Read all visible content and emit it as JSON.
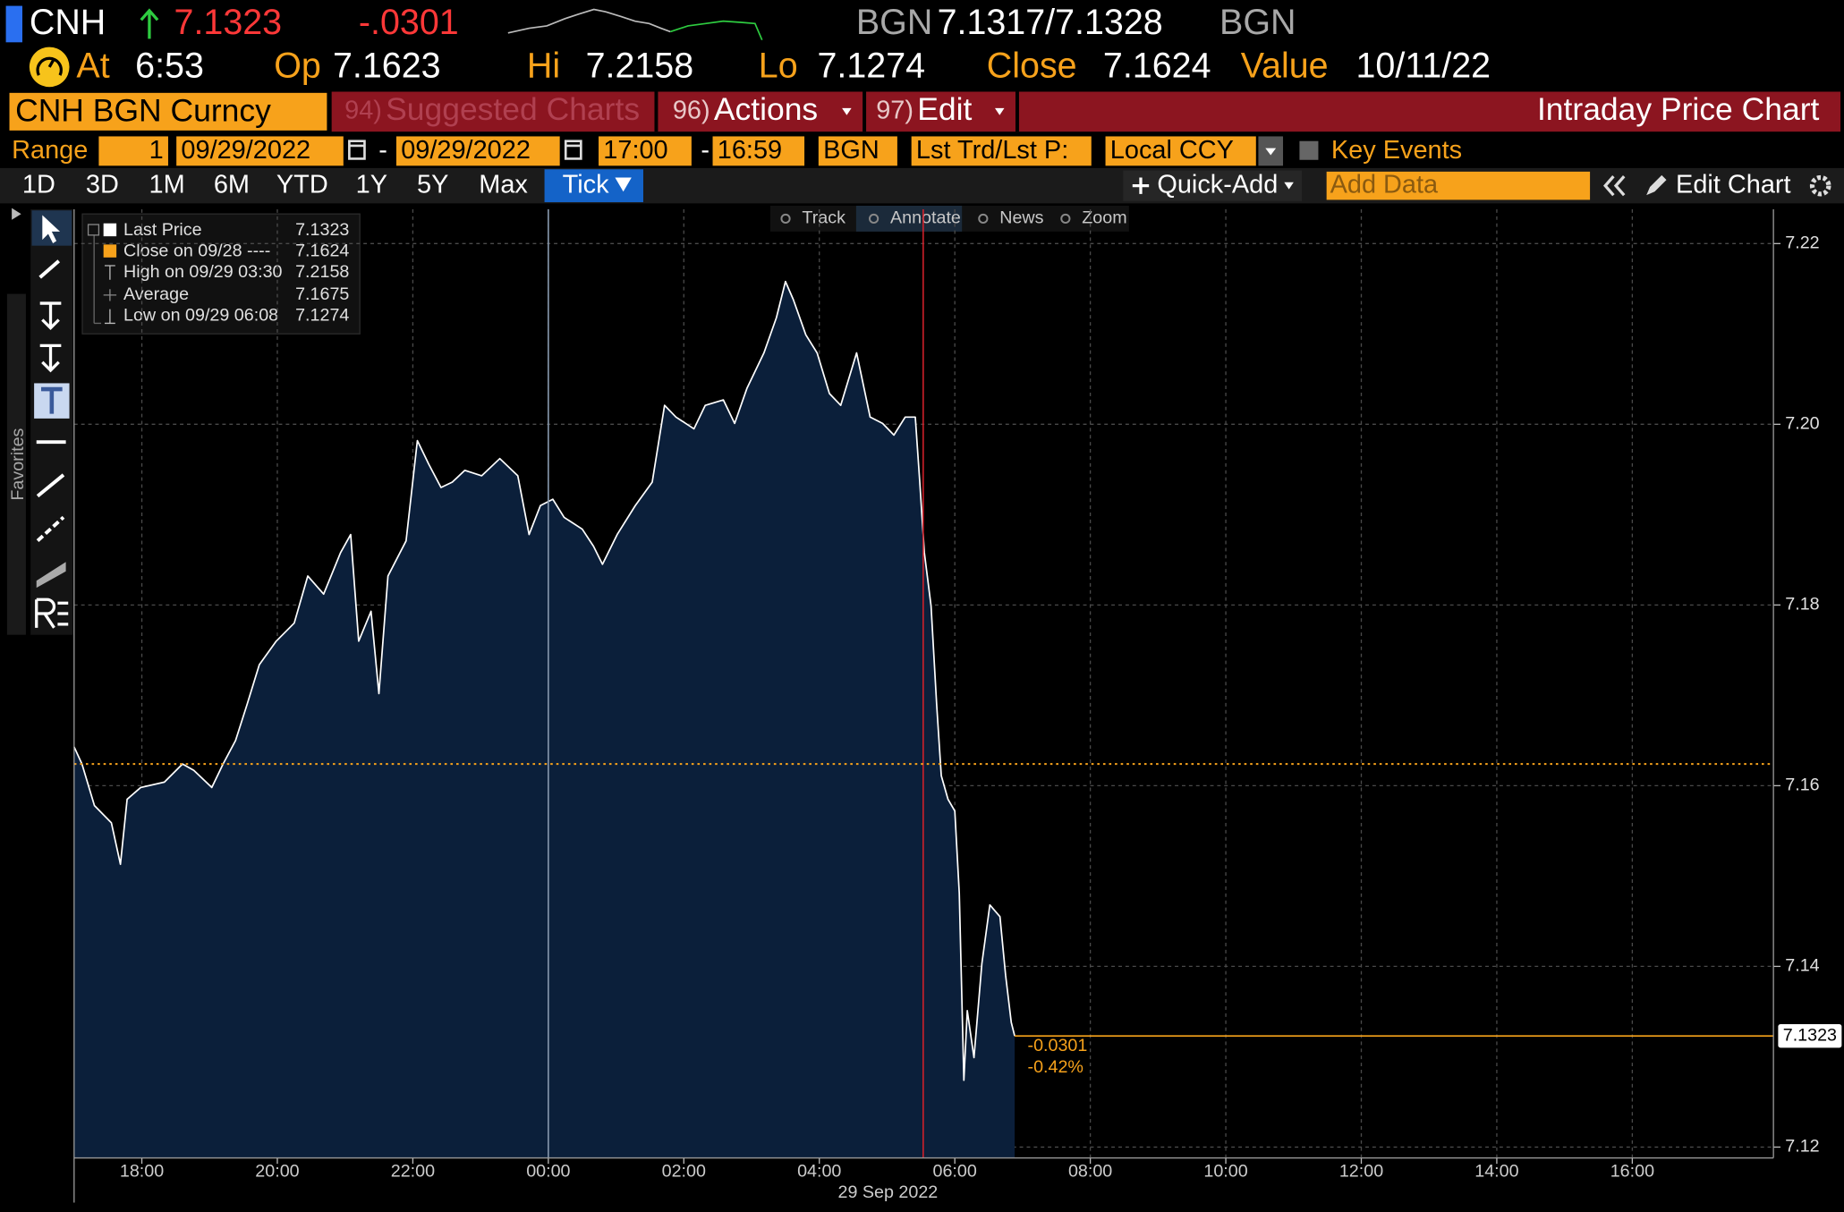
{
  "quote": {
    "ticker": "CNH",
    "last": "7.1323",
    "change": "-.0301",
    "source": "BGN",
    "bid_ask": "7.1317/7.1328",
    "source_right": "BGN"
  },
  "stats": [
    {
      "label": "At",
      "value": "6:53"
    },
    {
      "label": "Op",
      "value": "7.1623"
    },
    {
      "label": "Hi",
      "value": "7.2158"
    },
    {
      "label": "Lo",
      "value": "7.1274"
    },
    {
      "label": "Close",
      "value": "7.1624"
    },
    {
      "label": "Value",
      "value": "10/11/22"
    }
  ],
  "menu": {
    "security": "CNH BGN Curncy",
    "items": [
      {
        "num": "94)",
        "label": "Suggested Charts"
      },
      {
        "num": "96)",
        "label": "Actions"
      },
      {
        "num": "97)",
        "label": "Edit"
      }
    ],
    "title": "Intraday Price Chart"
  },
  "range": {
    "label": "Range",
    "count": "1",
    "start_date": "09/29/2022",
    "dash": "-",
    "end_date": "09/29/2022",
    "start_time": "17:00",
    "end_time": "16:59",
    "source": "BGN",
    "field": "Lst Trd/Lst P:",
    "currency": "Local CCY",
    "key_events": "Key Events"
  },
  "tabs": [
    "1D",
    "3D",
    "1M",
    "6M",
    "YTD",
    "1Y",
    "5Y",
    "Max",
    "Tick"
  ],
  "active_tab": "Tick",
  "toolbar_right": {
    "quick_add": "Quick-Add",
    "add_data": "Add Data",
    "edit_chart": "Edit Chart"
  },
  "chart_tools": [
    "Track",
    "Annotate",
    "News",
    "Zoom"
  ],
  "favorites": "Favorites",
  "legend": [
    {
      "label": "Last Price",
      "value": "7.1323"
    },
    {
      "label": "Close on 09/28 ----",
      "value": "7.1624"
    },
    {
      "label": "High on 09/29 03:30",
      "value": "7.2158"
    },
    {
      "label": "Average",
      "value": "7.1675"
    },
    {
      "label": "Low on 09/29 06:08",
      "value": "7.1274"
    }
  ],
  "chart_data": {
    "type": "area",
    "x": [
      "17:00",
      "17:07",
      "17:18",
      "17:33",
      "17:41",
      "17:47",
      "17:59",
      "18:20",
      "18:36",
      "18:46",
      "19:02",
      "19:12",
      "19:23",
      "19:33",
      "19:44",
      "19:59",
      "20:15",
      "20:27",
      "20:41",
      "20:56",
      "21:05",
      "21:12",
      "21:23",
      "21:30",
      "21:38",
      "21:54",
      "22:04",
      "22:14",
      "22:25",
      "22:35",
      "22:46",
      "23:01",
      "23:17",
      "23:33",
      "23:43",
      "23:53",
      "00:04",
      "00:14",
      "00:30",
      "00:40",
      "00:48",
      "01:01",
      "01:17",
      "01:32",
      "01:43",
      "01:53",
      "02:09",
      "02:19",
      "02:35",
      "02:45",
      "02:56",
      "03:11",
      "03:22",
      "03:30",
      "03:37",
      "03:48",
      "03:58",
      "04:09",
      "04:19",
      "04:33",
      "04:45",
      "04:56",
      "05:06",
      "05:16",
      "05:25",
      "05:29",
      "05:33",
      "05:39",
      "05:44",
      "05:48",
      "05:54",
      "06:00",
      "06:04",
      "06:08",
      "06:11",
      "06:17",
      "06:24",
      "06:31",
      "06:40",
      "06:45",
      "06:50",
      "06:53"
    ],
    "series": [
      {
        "name": "Last Price",
        "color": "#ffffff",
        "fill": "#0b1f3a",
        "values": [
          7.1643,
          7.1624,
          7.1578,
          7.1559,
          7.1513,
          7.1585,
          7.1598,
          7.1604,
          7.1624,
          7.1617,
          7.1598,
          7.1624,
          7.165,
          7.1689,
          7.1734,
          7.176,
          7.178,
          7.1832,
          7.1812,
          7.1858,
          7.1878,
          7.176,
          7.1793,
          7.1702,
          7.1832,
          7.1871,
          7.1982,
          7.1956,
          7.193,
          7.1936,
          7.1949,
          7.1943,
          7.1962,
          7.1943,
          7.1878,
          7.191,
          7.1917,
          7.1897,
          7.1884,
          7.1865,
          7.1845,
          7.1878,
          7.191,
          7.1936,
          7.2021,
          7.2008,
          7.1995,
          7.2021,
          7.2027,
          7.2001,
          7.204,
          7.2079,
          7.2118,
          7.2158,
          7.2138,
          7.2099,
          7.2079,
          7.2034,
          7.2021,
          7.2079,
          7.2008,
          7.2001,
          7.1988,
          7.2008,
          7.2008,
          7.1936,
          7.1858,
          7.1799,
          7.1689,
          7.1611,
          7.1585,
          7.1572,
          7.1481,
          7.1274,
          7.1351,
          7.1299,
          7.1403,
          7.1468,
          7.1455,
          7.139,
          7.1338,
          7.1323
        ]
      }
    ],
    "close_line": 7.1624,
    "close_color": "#f7a21b",
    "last_value": 7.1323,
    "last_color": "#f7a21b",
    "annotations": [
      "-0.0301",
      "-0.42%"
    ],
    "vlines": [
      {
        "x": "00:00",
        "color": "#8a9bb0"
      },
      {
        "x": "05:32",
        "color": "#d0202a"
      }
    ],
    "xlim": [
      "17:00",
      "18:05"
    ],
    "xticks": [
      "18:00",
      "20:00",
      "22:00",
      "00:00",
      "02:00",
      "04:00",
      "06:00",
      "08:00",
      "10:00",
      "12:00",
      "14:00",
      "16:00"
    ],
    "x_label": "29 Sep 2022",
    "ylim": [
      7.1188,
      7.2238
    ],
    "yticks": [
      7.12,
      7.14,
      7.16,
      7.18,
      {
        "value": 7.2,
        "label": "7.20"
      },
      7.22
    ],
    "grid": true
  }
}
